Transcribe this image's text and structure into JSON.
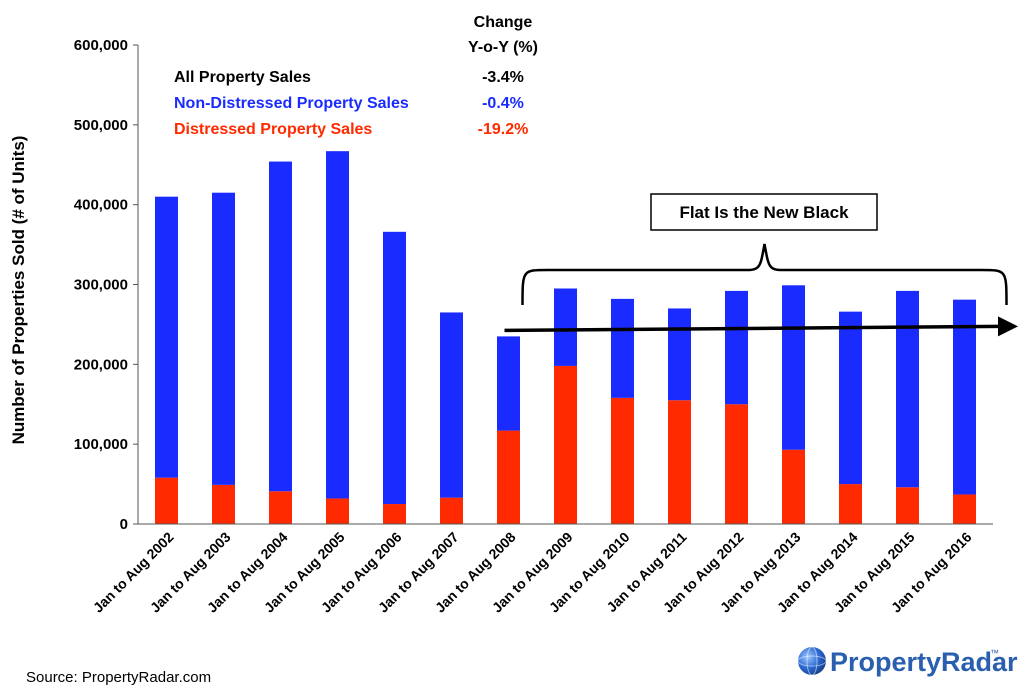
{
  "chart_data": {
    "type": "bar",
    "stacked": true,
    "categories": [
      "Jan to Aug 2002",
      "Jan to Aug 2003",
      "Jan to Aug 2004",
      "Jan to Aug 2005",
      "Jan to Aug 2006",
      "Jan to Aug 2007",
      "Jan to Aug 2008",
      "Jan to Aug 2009",
      "Jan to Aug 2010",
      "Jan to Aug 2011",
      "Jan to Aug 2012",
      "Jan to Aug 2013",
      "Jan to Aug 2014",
      "Jan to Aug 2015",
      "Jan to Aug 2016"
    ],
    "series": [
      {
        "name": "Distressed Property Sales",
        "color": "#ff2a00",
        "values": [
          58000,
          49000,
          41000,
          32000,
          25000,
          33000,
          117000,
          198000,
          158000,
          155000,
          150000,
          93000,
          50000,
          46000,
          37000
        ]
      },
      {
        "name": "Non-Distressed Property Sales",
        "color": "#1a2bff",
        "values": [
          352000,
          366000,
          413000,
          435000,
          341000,
          232000,
          118000,
          97000,
          124000,
          115000,
          142000,
          206000,
          216000,
          246000,
          244000
        ]
      }
    ],
    "totals": [
      410000,
      415000,
      454000,
      467000,
      366000,
      265000,
      235000,
      295000,
      282000,
      270000,
      292000,
      299000,
      266000,
      292000,
      281000
    ],
    "ylabel": "Number of Properties Sold (# of Units)",
    "ylim": [
      0,
      600000
    ],
    "yticks": [
      "0",
      "100,000",
      "200,000",
      "300,000",
      "400,000",
      "500,000",
      "600,000"
    ],
    "grid": false,
    "legend": {
      "header_line1": "Change",
      "header_line2": "Y-o-Y (%)",
      "entries": [
        {
          "label": "All Property Sales",
          "change": "-3.4%",
          "color": "#000000"
        },
        {
          "label": "Non-Distressed Property Sales",
          "change": "-0.4%",
          "color": "#1a2bff"
        },
        {
          "label": "Distressed Property Sales",
          "change": "-19.2%",
          "color": "#ff2a00"
        }
      ]
    },
    "annotation": {
      "text": "Flat Is the New Black",
      "brace_from": 7,
      "brace_to": 14,
      "arrow_level": 240000
    }
  },
  "source": "Source: PropertyRadar.com",
  "logo": {
    "text": "PropertyRadar",
    "mark": "™"
  }
}
